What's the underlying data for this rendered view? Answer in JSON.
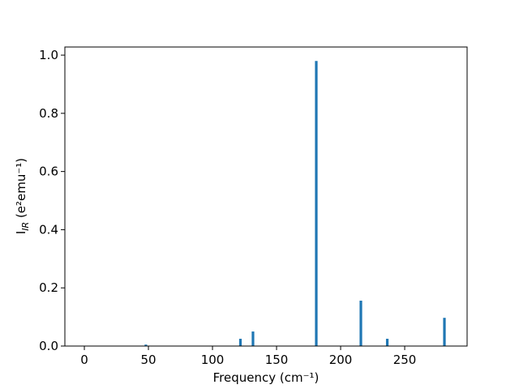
{
  "chart_data": {
    "type": "bar",
    "x": [
      48,
      121.8,
      131.6,
      181,
      215.8,
      236.4,
      281
    ],
    "values": [
      0.005,
      0.025,
      0.05,
      0.98,
      0.156,
      0.025,
      0.097
    ],
    "color": "#1f77b4",
    "xlim": [
      -15.2,
      298.7
    ],
    "ylim": [
      0,
      1.028
    ],
    "xticks": [
      0,
      50,
      100,
      150,
      200,
      250
    ],
    "yticks": [
      {
        "value": 0,
        "label": "0.0"
      },
      0.2,
      0.4,
      0.6,
      0.8,
      {
        "value": 1,
        "label": "1.0"
      }
    ],
    "xlabel": "Frequency (cm⁻¹)",
    "ylabel": {
      "main": "I",
      "sub": "IR",
      "rest": " (e²emu⁻¹)"
    },
    "grid": false
  }
}
